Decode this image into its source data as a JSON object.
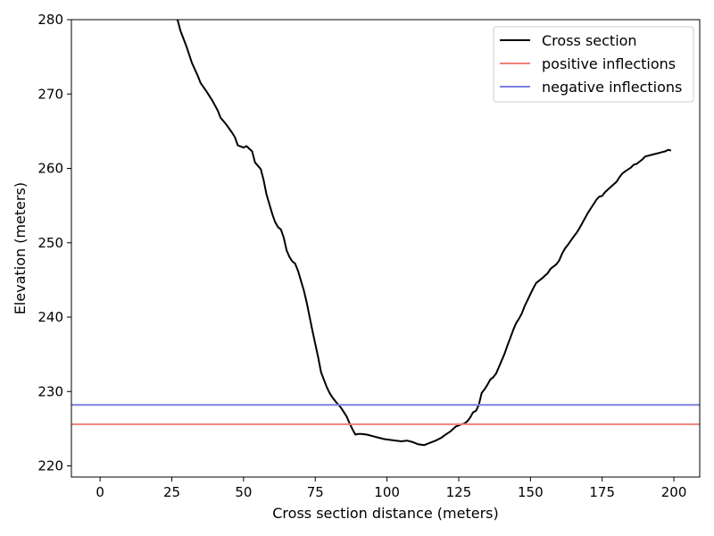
{
  "chart_data": {
    "type": "line",
    "title": "",
    "xlabel": "Cross section distance (meters)",
    "ylabel": "Elevation (meters)",
    "xlim": [
      -10,
      209
    ],
    "ylim": [
      218.5,
      280
    ],
    "xticks": [
      0,
      25,
      50,
      75,
      100,
      125,
      150,
      175,
      200
    ],
    "yticks": [
      220,
      230,
      240,
      250,
      260,
      270,
      280
    ],
    "grid": false,
    "legend_position": "top-right",
    "series": [
      {
        "name": "Cross section",
        "color": "#000000",
        "x": [
          27,
          28,
          30,
          32,
          34,
          35,
          37,
          39,
          41,
          42,
          44,
          46,
          47,
          48,
          50,
          51,
          53,
          54,
          56,
          57,
          58,
          60,
          61,
          62,
          63,
          64,
          65,
          66,
          67,
          68,
          69,
          70,
          71,
          72,
          74,
          76,
          77,
          79,
          80,
          81,
          82,
          84,
          86,
          87,
          88,
          89,
          90,
          91,
          93,
          95,
          97,
          99,
          101,
          103,
          105,
          107,
          109,
          111,
          113,
          115,
          117,
          119,
          120,
          122,
          124,
          126,
          127,
          128,
          129,
          130,
          131,
          132,
          133,
          134,
          135,
          136,
          137,
          138,
          139,
          140,
          141,
          142,
          143,
          144,
          145,
          146,
          147,
          148,
          149,
          150,
          151,
          152,
          154,
          156,
          157,
          159,
          160,
          161,
          162,
          163,
          165,
          166,
          167,
          168,
          169,
          170,
          171,
          172,
          173,
          174,
          175,
          176,
          178,
          180,
          181,
          182,
          183,
          185,
          186,
          187,
          189,
          190,
          192,
          194,
          196,
          197,
          198,
          199
        ],
        "y": [
          280,
          278.5,
          276.5,
          274.2,
          272.5,
          271.5,
          270.4,
          269.2,
          267.8,
          266.8,
          265.9,
          264.8,
          264.2,
          263.1,
          262.8,
          263.0,
          262.3,
          260.8,
          259.9,
          258.4,
          256.5,
          253.9,
          252.8,
          252.1,
          251.8,
          250.7,
          249.0,
          248.1,
          247.5,
          247.2,
          246.2,
          244.9,
          243.6,
          242.0,
          238.2,
          234.6,
          232.6,
          230.6,
          229.8,
          229.2,
          228.7,
          227.8,
          226.6,
          225.7,
          224.9,
          224.2,
          224.3,
          224.3,
          224.2,
          224.0,
          223.8,
          223.6,
          223.5,
          223.4,
          223.3,
          223.4,
          223.2,
          222.9,
          222.8,
          223.1,
          223.4,
          223.8,
          224.1,
          224.6,
          225.3,
          225.6,
          225.7,
          226.0,
          226.5,
          227.2,
          227.4,
          228.2,
          229.8,
          230.3,
          230.9,
          231.6,
          231.9,
          232.4,
          233.3,
          234.2,
          235.1,
          236.2,
          237.2,
          238.3,
          239.2,
          239.8,
          240.5,
          241.5,
          242.3,
          243.1,
          243.9,
          244.6,
          245.2,
          245.9,
          246.5,
          247.1,
          247.6,
          248.5,
          249.2,
          249.7,
          250.8,
          251.3,
          251.9,
          252.6,
          253.3,
          254.0,
          254.6,
          255.2,
          255.8,
          256.2,
          256.3,
          256.8,
          257.5,
          258.2,
          258.8,
          259.3,
          259.6,
          260.1,
          260.5,
          260.6,
          261.2,
          261.6,
          261.8,
          262.0,
          262.2,
          262.3,
          262.5,
          262.4
        ]
      },
      {
        "name": "positive inflections",
        "color": "#f08078",
        "hline": 225.6
      },
      {
        "name": "negative inflections",
        "color": "#7b80e0",
        "hline": 228.2
      }
    ]
  }
}
